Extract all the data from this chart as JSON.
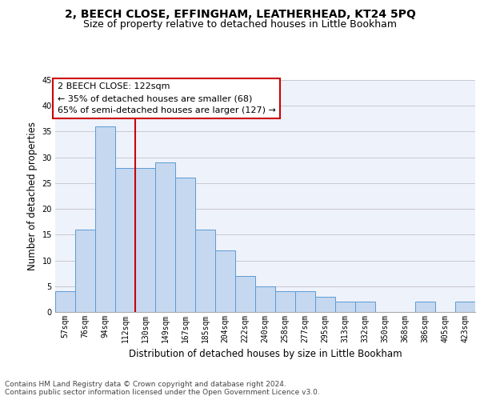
{
  "title": "2, BEECH CLOSE, EFFINGHAM, LEATHERHEAD, KT24 5PQ",
  "subtitle": "Size of property relative to detached houses in Little Bookham",
  "xlabel": "Distribution of detached houses by size in Little Bookham",
  "ylabel": "Number of detached properties",
  "bin_labels": [
    "57sqm",
    "76sqm",
    "94sqm",
    "112sqm",
    "130sqm",
    "149sqm",
    "167sqm",
    "185sqm",
    "204sqm",
    "222sqm",
    "240sqm",
    "258sqm",
    "277sqm",
    "295sqm",
    "313sqm",
    "332sqm",
    "350sqm",
    "368sqm",
    "386sqm",
    "405sqm",
    "423sqm"
  ],
  "values": [
    4,
    16,
    36,
    28,
    28,
    29,
    26,
    16,
    12,
    7,
    5,
    4,
    4,
    3,
    2,
    2,
    0,
    0,
    2,
    0,
    2
  ],
  "bar_color": "#c5d8f0",
  "bar_edge_color": "#5b9bd5",
  "vline_color": "#cc0000",
  "vline_x_idx": 3.5,
  "annotation_line1": "2 BEECH CLOSE: 122sqm",
  "annotation_line2": "← 35% of detached houses are smaller (68)",
  "annotation_line3": "65% of semi-detached houses are larger (127) →",
  "annotation_box_color": "white",
  "annotation_box_edge": "#cc0000",
  "ylim": [
    0,
    45
  ],
  "yticks": [
    0,
    5,
    10,
    15,
    20,
    25,
    30,
    35,
    40,
    45
  ],
  "grid_color": "#c8c8d0",
  "background_color": "#eef2fa",
  "footer_line1": "Contains HM Land Registry data © Crown copyright and database right 2024.",
  "footer_line2": "Contains public sector information licensed under the Open Government Licence v3.0.",
  "title_fontsize": 10,
  "subtitle_fontsize": 9,
  "axis_label_fontsize": 8.5,
  "tick_fontsize": 7,
  "annotation_fontsize": 8,
  "footer_fontsize": 6.5
}
